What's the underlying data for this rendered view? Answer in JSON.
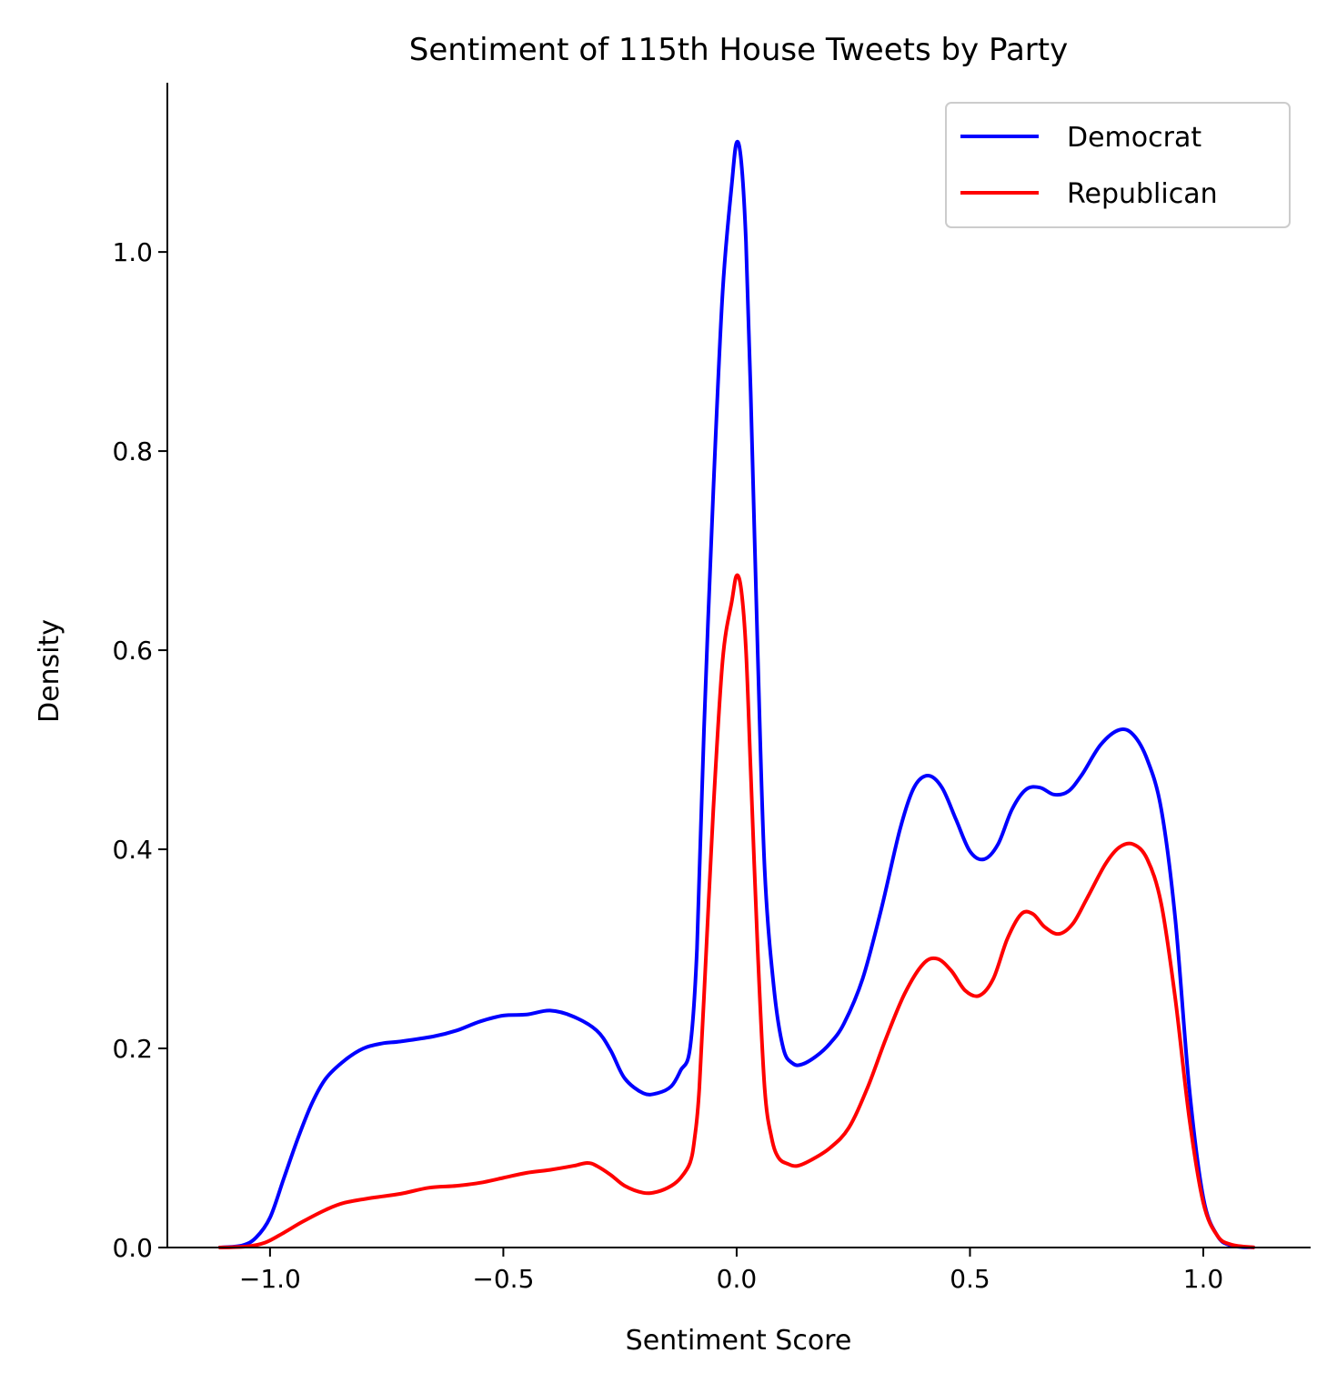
{
  "chart_data": {
    "type": "line",
    "title": "Sentiment of 115th House Tweets by Party",
    "xlabel": "Sentiment Score",
    "ylabel": "Density",
    "xlim": [
      -1.22,
      1.23
    ],
    "ylim": [
      0.0,
      1.17
    ],
    "xticks": [
      -1.0,
      -0.5,
      0.0,
      0.5,
      1.0
    ],
    "xtick_labels": [
      "−1.0",
      "−0.5",
      "0.0",
      "0.5",
      "1.0"
    ],
    "yticks": [
      0.0,
      0.2,
      0.4,
      0.6,
      0.8,
      1.0
    ],
    "ytick_labels": [
      "0.0",
      "0.2",
      "0.4",
      "0.6",
      "0.8",
      "1.0"
    ],
    "grid": false,
    "legend_position": "top-right",
    "series": [
      {
        "name": "Democrat",
        "color": "#0000ff",
        "points": [
          [
            -1.11,
            0.0
          ],
          [
            -1.06,
            0.002
          ],
          [
            -1.03,
            0.01
          ],
          [
            -1.0,
            0.03
          ],
          [
            -0.97,
            0.07
          ],
          [
            -0.94,
            0.11
          ],
          [
            -0.91,
            0.145
          ],
          [
            -0.88,
            0.17
          ],
          [
            -0.84,
            0.188
          ],
          [
            -0.8,
            0.2
          ],
          [
            -0.76,
            0.205
          ],
          [
            -0.72,
            0.207
          ],
          [
            -0.65,
            0.212
          ],
          [
            -0.6,
            0.218
          ],
          [
            -0.55,
            0.227
          ],
          [
            -0.5,
            0.233
          ],
          [
            -0.45,
            0.234
          ],
          [
            -0.4,
            0.238
          ],
          [
            -0.35,
            0.232
          ],
          [
            -0.3,
            0.218
          ],
          [
            -0.27,
            0.198
          ],
          [
            -0.24,
            0.17
          ],
          [
            -0.2,
            0.155
          ],
          [
            -0.17,
            0.155
          ],
          [
            -0.14,
            0.162
          ],
          [
            -0.12,
            0.178
          ],
          [
            -0.1,
            0.2
          ],
          [
            -0.085,
            0.3
          ],
          [
            -0.07,
            0.52
          ],
          [
            -0.05,
            0.76
          ],
          [
            -0.03,
            0.96
          ],
          [
            -0.01,
            1.07
          ],
          [
            0.0,
            1.11
          ],
          [
            0.01,
            1.09
          ],
          [
            0.02,
            1.01
          ],
          [
            0.03,
            0.86
          ],
          [
            0.045,
            0.6
          ],
          [
            0.06,
            0.38
          ],
          [
            0.08,
            0.26
          ],
          [
            0.1,
            0.2
          ],
          [
            0.12,
            0.185
          ],
          [
            0.14,
            0.184
          ],
          [
            0.17,
            0.192
          ],
          [
            0.2,
            0.205
          ],
          [
            0.23,
            0.225
          ],
          [
            0.27,
            0.27
          ],
          [
            0.31,
            0.34
          ],
          [
            0.35,
            0.42
          ],
          [
            0.38,
            0.462
          ],
          [
            0.41,
            0.474
          ],
          [
            0.44,
            0.462
          ],
          [
            0.47,
            0.43
          ],
          [
            0.5,
            0.398
          ],
          [
            0.53,
            0.39
          ],
          [
            0.56,
            0.405
          ],
          [
            0.59,
            0.44
          ],
          [
            0.62,
            0.46
          ],
          [
            0.65,
            0.462
          ],
          [
            0.68,
            0.455
          ],
          [
            0.71,
            0.458
          ],
          [
            0.74,
            0.475
          ],
          [
            0.78,
            0.505
          ],
          [
            0.82,
            0.52
          ],
          [
            0.85,
            0.515
          ],
          [
            0.88,
            0.49
          ],
          [
            0.91,
            0.44
          ],
          [
            0.94,
            0.33
          ],
          [
            0.97,
            0.16
          ],
          [
            1.0,
            0.05
          ],
          [
            1.03,
            0.012
          ],
          [
            1.06,
            0.002
          ],
          [
            1.11,
            0.0
          ]
        ]
      },
      {
        "name": "Republican",
        "color": "#ff0000",
        "points": [
          [
            -1.11,
            0.0
          ],
          [
            -1.05,
            0.001
          ],
          [
            -1.01,
            0.005
          ],
          [
            -0.97,
            0.015
          ],
          [
            -0.93,
            0.026
          ],
          [
            -0.88,
            0.038
          ],
          [
            -0.84,
            0.045
          ],
          [
            -0.78,
            0.05
          ],
          [
            -0.72,
            0.054
          ],
          [
            -0.66,
            0.06
          ],
          [
            -0.6,
            0.062
          ],
          [
            -0.55,
            0.065
          ],
          [
            -0.5,
            0.07
          ],
          [
            -0.45,
            0.075
          ],
          [
            -0.4,
            0.078
          ],
          [
            -0.35,
            0.082
          ],
          [
            -0.32,
            0.085
          ],
          [
            -0.3,
            0.082
          ],
          [
            -0.27,
            0.073
          ],
          [
            -0.24,
            0.062
          ],
          [
            -0.2,
            0.055
          ],
          [
            -0.17,
            0.056
          ],
          [
            -0.14,
            0.062
          ],
          [
            -0.12,
            0.07
          ],
          [
            -0.1,
            0.085
          ],
          [
            -0.09,
            0.11
          ],
          [
            -0.08,
            0.16
          ],
          [
            -0.065,
            0.3
          ],
          [
            -0.05,
            0.44
          ],
          [
            -0.03,
            0.59
          ],
          [
            -0.01,
            0.65
          ],
          [
            0.0,
            0.675
          ],
          [
            0.01,
            0.66
          ],
          [
            0.02,
            0.6
          ],
          [
            0.03,
            0.48
          ],
          [
            0.045,
            0.3
          ],
          [
            0.06,
            0.16
          ],
          [
            0.075,
            0.11
          ],
          [
            0.09,
            0.09
          ],
          [
            0.11,
            0.084
          ],
          [
            0.13,
            0.082
          ],
          [
            0.16,
            0.088
          ],
          [
            0.2,
            0.1
          ],
          [
            0.24,
            0.12
          ],
          [
            0.28,
            0.16
          ],
          [
            0.32,
            0.21
          ],
          [
            0.36,
            0.255
          ],
          [
            0.4,
            0.285
          ],
          [
            0.43,
            0.29
          ],
          [
            0.46,
            0.278
          ],
          [
            0.49,
            0.258
          ],
          [
            0.52,
            0.253
          ],
          [
            0.55,
            0.27
          ],
          [
            0.58,
            0.31
          ],
          [
            0.61,
            0.335
          ],
          [
            0.635,
            0.335
          ],
          [
            0.66,
            0.322
          ],
          [
            0.69,
            0.315
          ],
          [
            0.72,
            0.325
          ],
          [
            0.75,
            0.35
          ],
          [
            0.79,
            0.385
          ],
          [
            0.82,
            0.402
          ],
          [
            0.85,
            0.405
          ],
          [
            0.88,
            0.39
          ],
          [
            0.91,
            0.345
          ],
          [
            0.94,
            0.25
          ],
          [
            0.97,
            0.13
          ],
          [
            1.0,
            0.045
          ],
          [
            1.03,
            0.012
          ],
          [
            1.06,
            0.003
          ],
          [
            1.11,
            0.0
          ]
        ]
      }
    ]
  }
}
